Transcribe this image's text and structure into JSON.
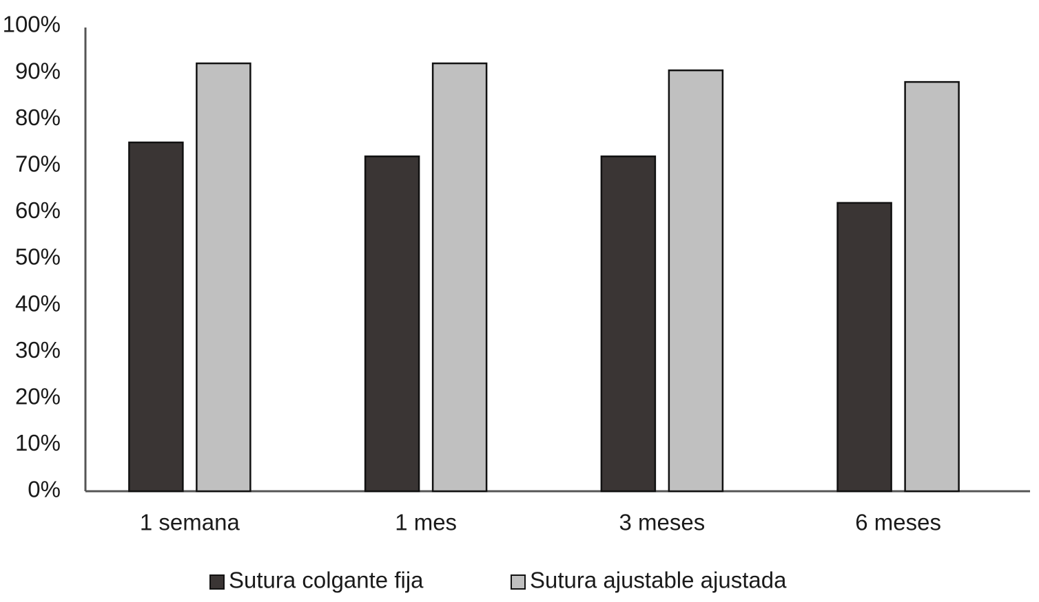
{
  "chart_data": {
    "type": "bar",
    "categories": [
      "1 semana",
      "1 mes",
      "3 meses",
      "6 meses"
    ],
    "series": [
      {
        "name": "Sutura colgante fija",
        "color": "#3a3534",
        "values": [
          75,
          72,
          72,
          62
        ]
      },
      {
        "name": "Sutura ajustable ajustada",
        "color": "#c0c0c0",
        "values": [
          92,
          92,
          90.5,
          88
        ]
      }
    ],
    "ylim": [
      0,
      100
    ],
    "yticks": [
      {
        "value": 0,
        "label": "0%"
      },
      {
        "value": 10,
        "label": "10%"
      },
      {
        "value": 20,
        "label": "20%"
      },
      {
        "value": 30,
        "label": "30%"
      },
      {
        "value": 40,
        "label": "40%"
      },
      {
        "value": 50,
        "label": "50%"
      },
      {
        "value": 60,
        "label": "60%"
      },
      {
        "value": 70,
        "label": "70%"
      },
      {
        "value": 80,
        "label": "80%"
      },
      {
        "value": 90,
        "label": "90%"
      },
      {
        "value": 100,
        "label": "100%"
      }
    ],
    "grid": false,
    "legend": "bottom"
  }
}
